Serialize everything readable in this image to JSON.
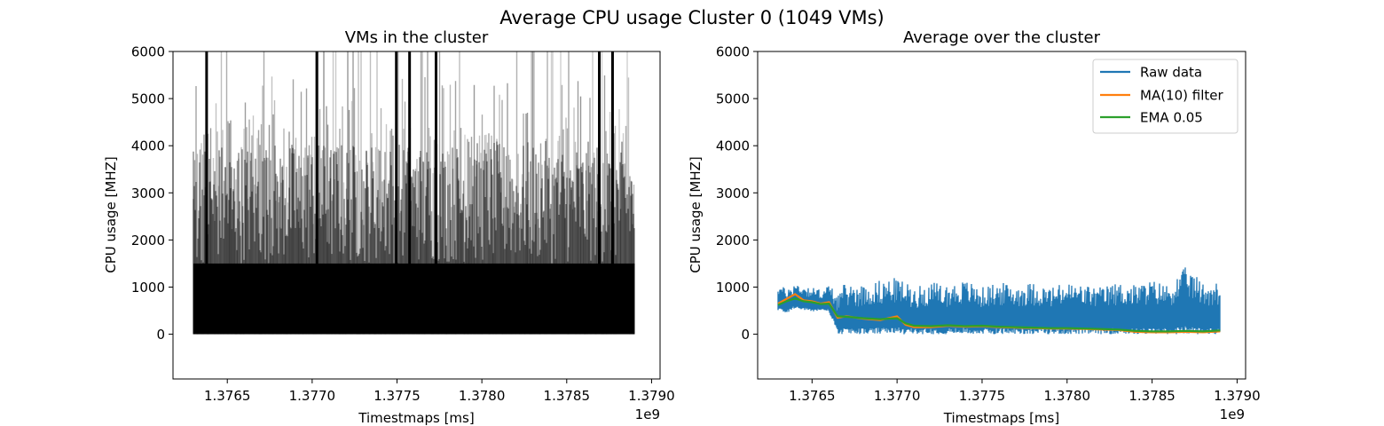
{
  "figure": {
    "suptitle": "Average CPU usage Cluster 0 (1049 VMs)"
  },
  "colors": {
    "raw": "#1f77b4",
    "ma": "#ff7f0e",
    "ema": "#2ca02c",
    "vms": "#000000",
    "axis": "#000000"
  },
  "chart_data": [
    {
      "type": "line",
      "title": "VMs in the cluster",
      "xlabel": "Timestmaps [ms]",
      "ylabel": "CPU usage [MHZ]",
      "x_offset_label": "1e9",
      "xlim": [
        1.37618,
        1.37905
      ],
      "ylim": [
        -950,
        6000
      ],
      "xticks": [
        1.3765,
        1.377,
        1.3775,
        1.378,
        1.3785,
        1.379
      ],
      "xtick_labels": [
        "1.3765",
        "1.3770",
        "1.3775",
        "1.3780",
        "1.3785",
        "1.3790"
      ],
      "yticks": [
        0,
        1000,
        2000,
        3000,
        4000,
        5000,
        6000
      ],
      "ytick_labels": [
        "0",
        "1000",
        "2000",
        "3000",
        "4000",
        "5000",
        "6000"
      ],
      "x_range": [
        1.3763,
        1.3789
      ],
      "vm_count": 1049,
      "series_color": "#000000",
      "description_values": {
        "baseline": 0,
        "dense_fill_top_approx": 1500,
        "peaks_max": 6000
      }
    },
    {
      "type": "line",
      "title": "Average over the cluster",
      "xlabel": "Timestmaps [ms]",
      "ylabel": "CPU usage [MHZ]",
      "x_offset_label": "1e9",
      "xlim": [
        1.37618,
        1.37905
      ],
      "ylim": [
        -950,
        6000
      ],
      "xticks": [
        1.3765,
        1.377,
        1.3775,
        1.378,
        1.3785,
        1.379
      ],
      "xtick_labels": [
        "1.3765",
        "1.3770",
        "1.3775",
        "1.3780",
        "1.3785",
        "1.3790"
      ],
      "yticks": [
        0,
        1000,
        2000,
        3000,
        4000,
        5000,
        6000
      ],
      "ytick_labels": [
        "0",
        "1000",
        "2000",
        "3000",
        "4000",
        "5000",
        "6000"
      ],
      "legend": {
        "position": "top-right"
      },
      "series": [
        {
          "name": "Raw data",
          "color": "#1f77b4",
          "x": [
            1.3763,
            1.37635,
            1.3764,
            1.37645,
            1.3765,
            1.37655,
            1.3766,
            1.37665,
            1.3767,
            1.3768,
            1.3769,
            1.377,
            1.3771,
            1.3772,
            1.3773,
            1.3774,
            1.3775,
            1.3776,
            1.3777,
            1.3778,
            1.3779,
            1.378,
            1.3781,
            1.3782,
            1.3783,
            1.3784,
            1.3785,
            1.3786,
            1.3787,
            1.3788,
            1.3789
          ],
          "y_low": [
            500,
            450,
            550,
            500,
            480,
            500,
            470,
            0,
            0,
            0,
            0,
            0,
            0,
            0,
            0,
            0,
            0,
            0,
            0,
            0,
            0,
            0,
            0,
            0,
            0,
            0,
            0,
            0,
            0,
            0,
            0
          ],
          "y_high": [
            1100,
            950,
            1100,
            1050,
            1000,
            950,
            1050,
            900,
            1100,
            1050,
            1150,
            1200,
            1000,
            1100,
            1050,
            1150,
            1000,
            1100,
            1050,
            1100,
            1000,
            1100,
            1050,
            1000,
            1100,
            1050,
            1150,
            1050,
            1440,
            1100,
            1120
          ]
        },
        {
          "name": "MA(10) filter",
          "color": "#ff7f0e",
          "x": [
            1.3763,
            1.37635,
            1.3764,
            1.37645,
            1.3765,
            1.37655,
            1.3766,
            1.37665,
            1.3767,
            1.3768,
            1.3769,
            1.377,
            1.37705,
            1.3771,
            1.3772,
            1.3773,
            1.3774,
            1.3775,
            1.3776,
            1.3777,
            1.3778,
            1.3779,
            1.378,
            1.3781,
            1.3782,
            1.3783,
            1.3784,
            1.3785,
            1.3786,
            1.3787,
            1.3788,
            1.3789
          ],
          "y": [
            650,
            750,
            850,
            720,
            700,
            650,
            680,
            350,
            380,
            330,
            300,
            380,
            200,
            150,
            150,
            180,
            160,
            170,
            150,
            140,
            130,
            120,
            120,
            110,
            100,
            90,
            50,
            40,
            40,
            50,
            40,
            60
          ]
        },
        {
          "name": "EMA 0.05",
          "color": "#2ca02c",
          "x": [
            1.3763,
            1.37635,
            1.3764,
            1.37645,
            1.3765,
            1.37655,
            1.3766,
            1.37665,
            1.3767,
            1.3768,
            1.3769,
            1.377,
            1.37705,
            1.3771,
            1.3772,
            1.3773,
            1.3774,
            1.3775,
            1.3776,
            1.3777,
            1.3778,
            1.3779,
            1.378,
            1.3781,
            1.3782,
            1.3783,
            1.3784,
            1.3785,
            1.3786,
            1.3787,
            1.3788,
            1.3789
          ],
          "y": [
            620,
            700,
            760,
            700,
            680,
            640,
            650,
            380,
            370,
            340,
            320,
            340,
            230,
            180,
            170,
            190,
            170,
            180,
            160,
            150,
            140,
            130,
            130,
            120,
            110,
            100,
            70,
            60,
            60,
            70,
            60,
            80
          ]
        }
      ]
    }
  ]
}
